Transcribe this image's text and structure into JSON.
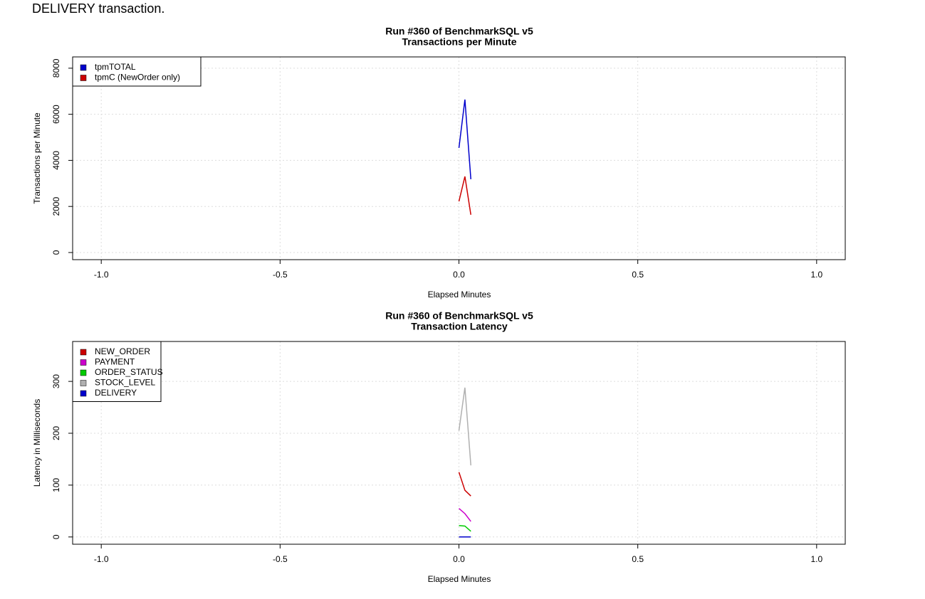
{
  "intro_text": "DELIVERY transaction.",
  "chart_data": [
    {
      "type": "line",
      "title": "Run #360 of BenchmarkSQL v5",
      "subtitle": "Transactions per Minute",
      "x_label": "Elapsed Minutes",
      "y_label": "Transactions per Minute",
      "x": [
        0,
        0.0167,
        0.0333
      ],
      "series": [
        {
          "name": "tpmTOTAL",
          "color": "#0000cc",
          "values": [
            4540,
            6640,
            3180
          ]
        },
        {
          "name": "tpmC (NewOrder only)",
          "color": "#cc0000",
          "values": [
            2220,
            3300,
            1640
          ]
        }
      ],
      "xlim": [
        -1.08,
        1.08
      ],
      "ylim": [
        -310,
        8490
      ],
      "xticks": [
        {
          "value": -1,
          "label": "-1.0"
        },
        -0.5,
        {
          "value": 0,
          "label": "0.0"
        },
        0.5,
        {
          "value": 1,
          "label": "1.0"
        }
      ],
      "yticks": [
        0,
        2000,
        4000,
        6000,
        8000
      ],
      "grid": true,
      "legend": "top-left"
    },
    {
      "type": "line",
      "title": "Run #360 of BenchmarkSQL v5",
      "subtitle": "Transaction Latency",
      "x_label": "Elapsed Minutes",
      "y_label": "Latency in Milliseconds",
      "x": [
        0,
        0.0167,
        0.0333
      ],
      "series": [
        {
          "name": "NEW_ORDER",
          "color": "#cc0000",
          "values": [
            125,
            90,
            79
          ]
        },
        {
          "name": "PAYMENT",
          "color": "#cc00cc",
          "values": [
            55,
            45,
            30
          ]
        },
        {
          "name": "ORDER_STATUS",
          "color": "#00cc00",
          "values": [
            22,
            21,
            11
          ]
        },
        {
          "name": "STOCK_LEVEL",
          "color": "#b0b0b0",
          "values": [
            205,
            288,
            138
          ]
        },
        {
          "name": "DELIVERY",
          "color": "#0000cc",
          "values": [
            0,
            0,
            0
          ]
        }
      ],
      "xlim": [
        -1.08,
        1.08
      ],
      "ylim": [
        -14,
        377
      ],
      "xticks": [
        {
          "value": -1,
          "label": "-1.0"
        },
        -0.5,
        {
          "value": 0,
          "label": "0.0"
        },
        0.5,
        {
          "value": 1,
          "label": "1.0"
        }
      ],
      "yticks": [
        0,
        100,
        200,
        300
      ],
      "grid": true,
      "legend": "top-left"
    }
  ]
}
